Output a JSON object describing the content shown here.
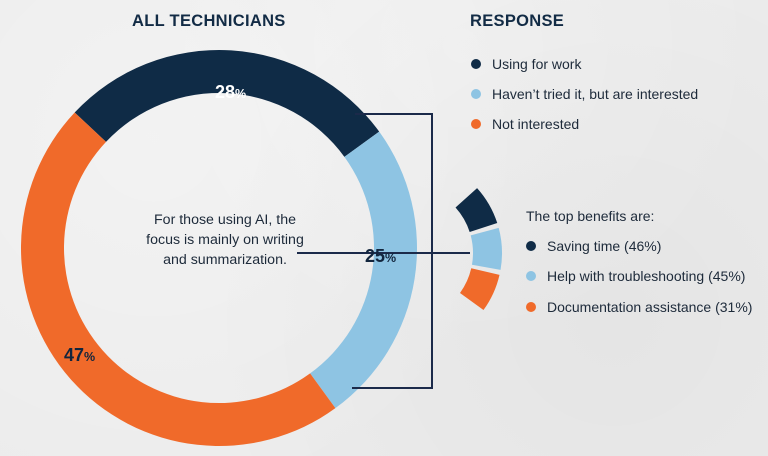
{
  "left_title": "ALL TECHNICIANS",
  "right_title": "RESPONSE",
  "center_note": "For those using AI, the focus is mainly on writing and summarization.",
  "benefits_title": "The top benefits are:",
  "colors": {
    "navy": "#0f2b46",
    "light_blue": "#8ec4e3",
    "orange": "#f06a2a",
    "line": "#1b2a4a"
  },
  "legend": [
    {
      "label": "Using for work",
      "color": "#0f2b46"
    },
    {
      "label": "Haven’t tried it, but are interested",
      "color": "#8ec4e3"
    },
    {
      "label": "Not interested",
      "color": "#f06a2a"
    }
  ],
  "benefits": [
    {
      "label": "Saving time (46%)",
      "color": "#0f2b46"
    },
    {
      "label": "Help with troubleshooting (45%)",
      "color": "#8ec4e3"
    },
    {
      "label": "Documentation assistance (31%)",
      "color": "#f06a2a"
    }
  ],
  "chart_data": {
    "type": "pie",
    "title": "ALL TECHNICIANS",
    "legend_title": "RESPONSE",
    "categories": [
      "Using for work",
      "Haven’t tried it, but are interested",
      "Not interested"
    ],
    "values": [
      28,
      25,
      47
    ],
    "labels": [
      {
        "number": "28",
        "suffix": "%"
      },
      {
        "number": "25",
        "suffix": "%"
      },
      {
        "number": "47",
        "suffix": "%"
      }
    ],
    "breakdown": {
      "title": "The top benefits are:",
      "categories": [
        "Saving time",
        "Help with troubleshooting",
        "Documentation assistance"
      ],
      "values": [
        46,
        45,
        31
      ]
    }
  }
}
